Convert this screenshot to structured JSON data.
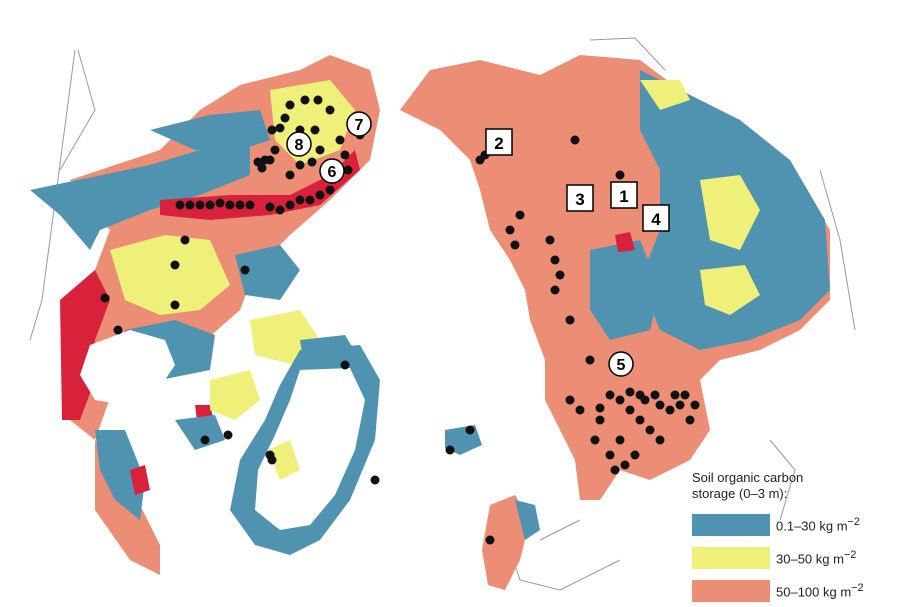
{
  "colors": {
    "blue": "#4f93b0",
    "yellow": "#eef07a",
    "salmon": "#ec8e75",
    "red": "#d8213a",
    "point": "#111111",
    "coast": "#9a9a9a"
  },
  "legend": {
    "title_line1": "Soil organic carbon",
    "title_line2": "storage (0–3 m):",
    "items": [
      {
        "label": "0.1–30 kg m",
        "sup": "−2",
        "color": "#4f93b0"
      },
      {
        "label": "30–50 kg m",
        "sup": "−2",
        "color": "#eef07a"
      },
      {
        "label": "50–100 kg m",
        "sup": "−2",
        "color": "#ec8e75"
      }
    ]
  },
  "site_labels_square": [
    "2",
    "3",
    "1",
    "4"
  ],
  "site_labels_circle": [
    "7",
    "8",
    "6",
    "5"
  ]
}
